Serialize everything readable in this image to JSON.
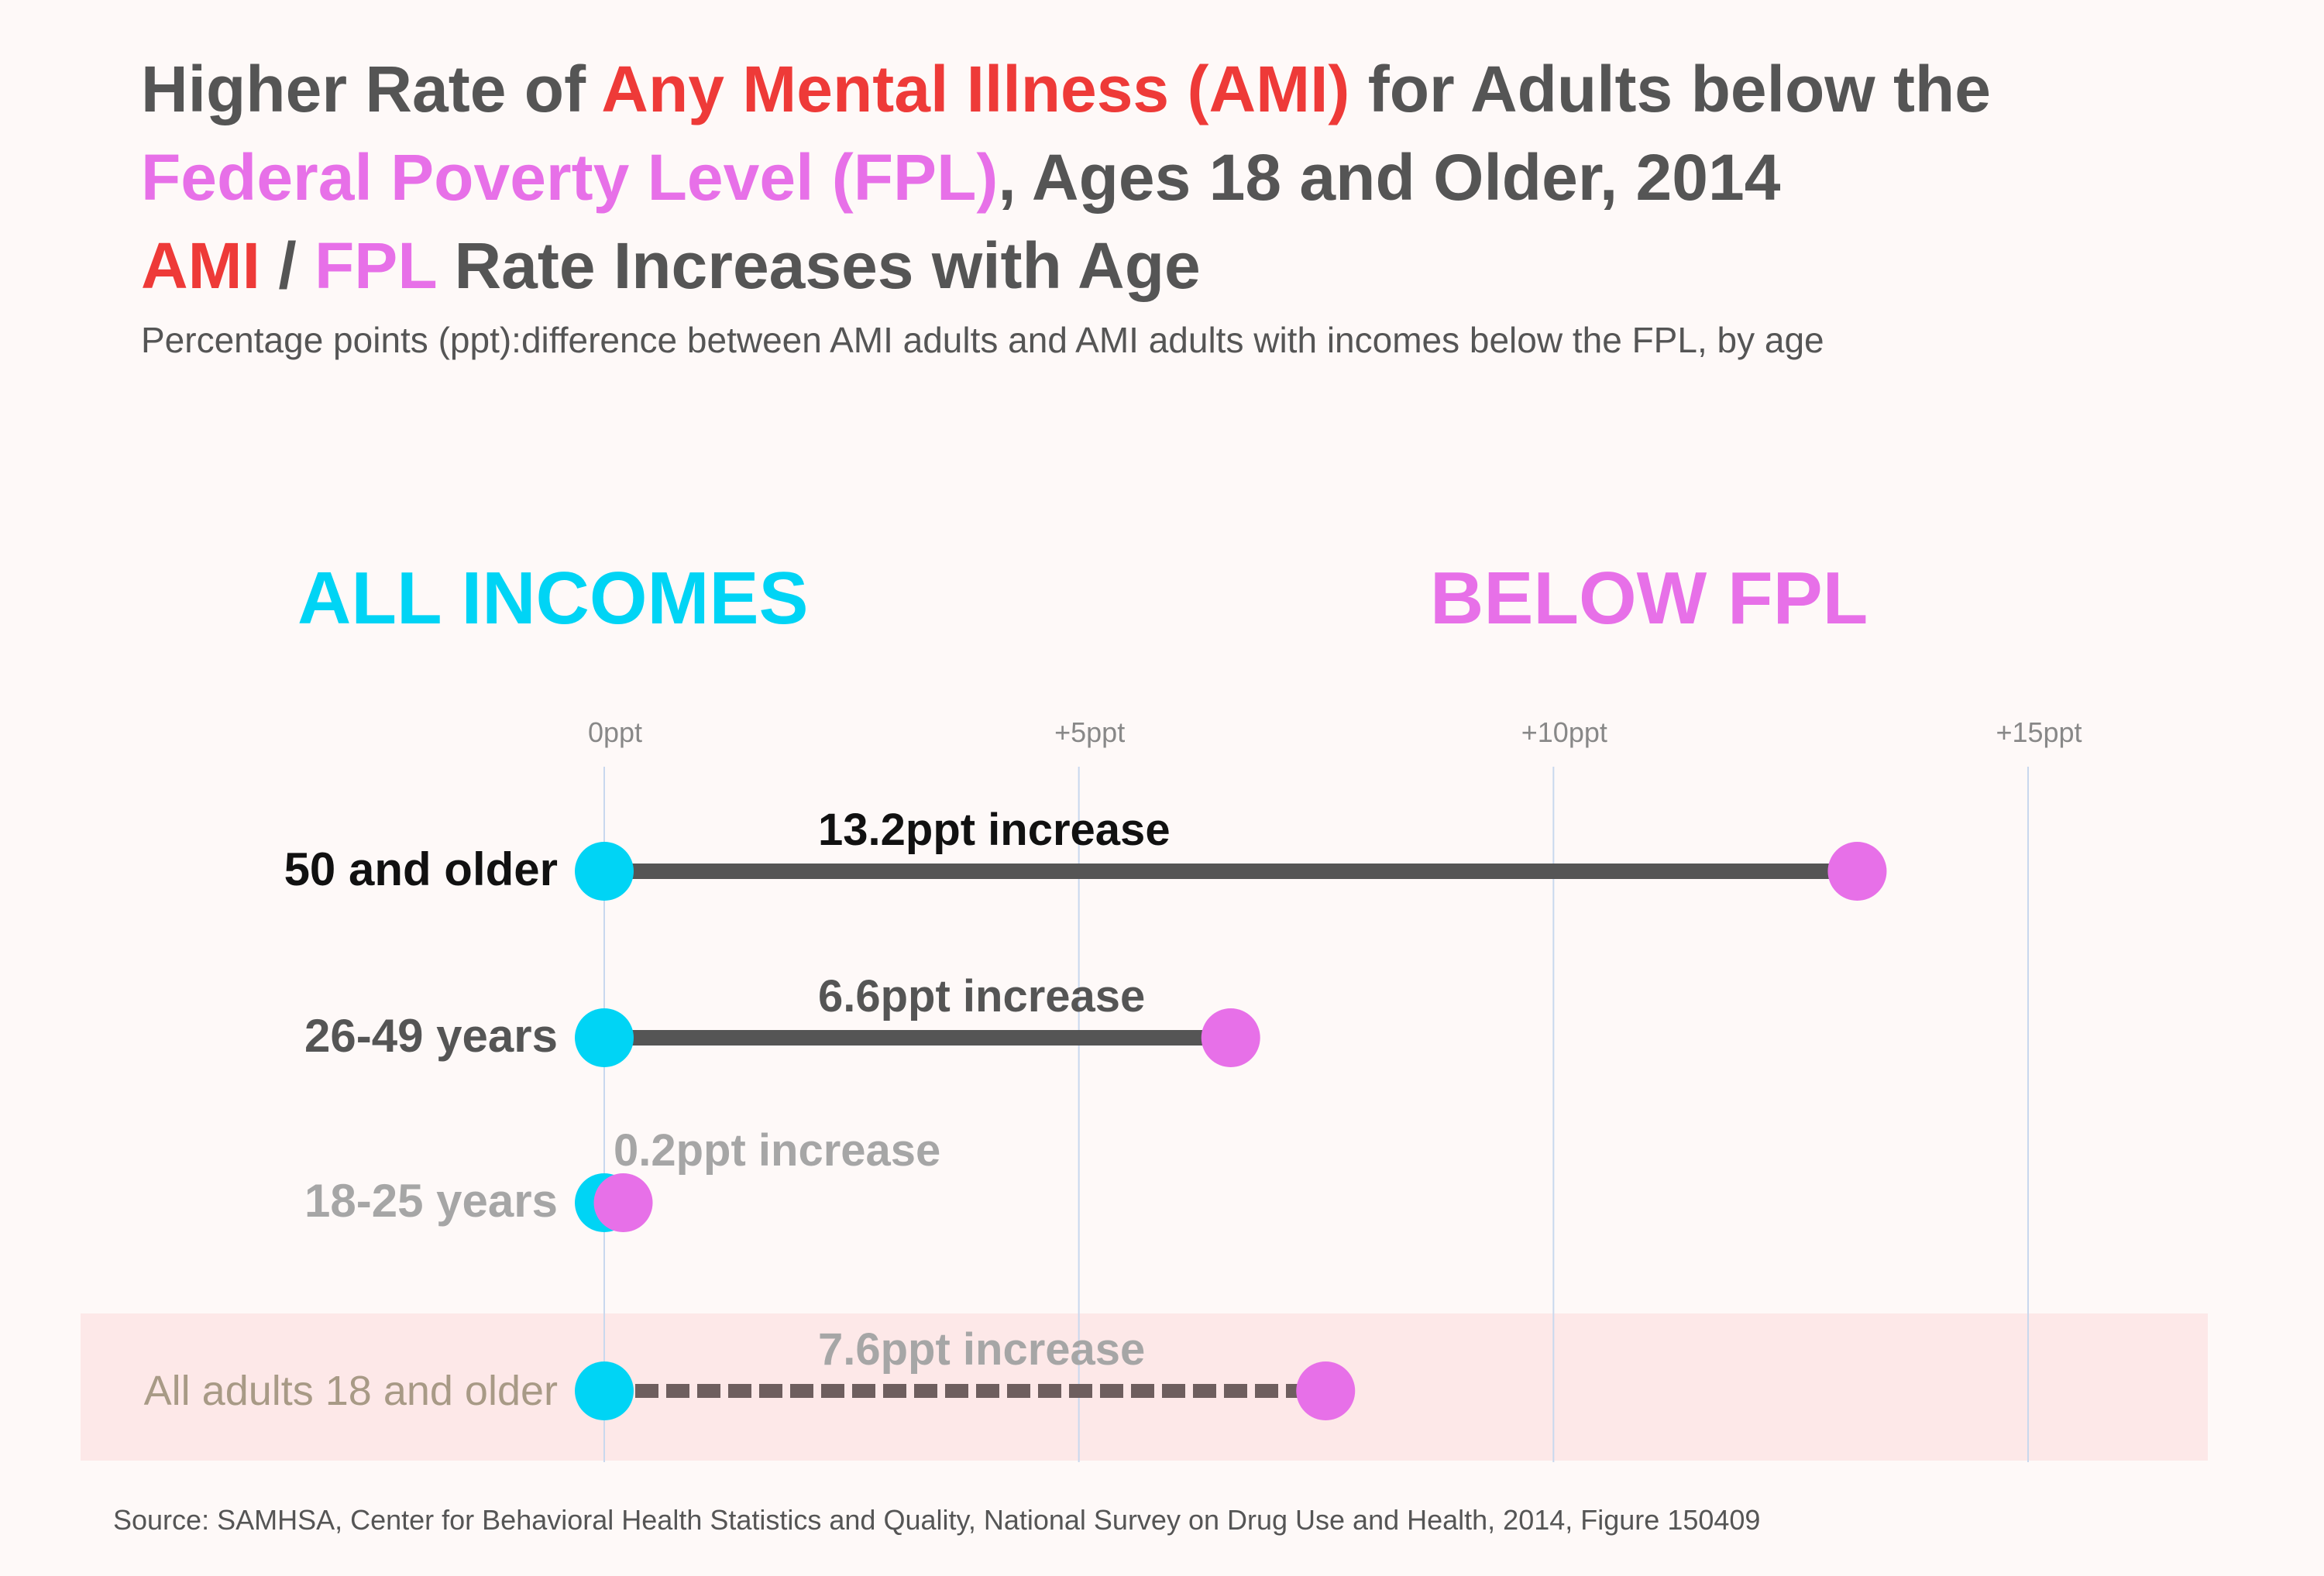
{
  "title": {
    "line1": {
      "pre": "Higher Rate of ",
      "highlight": "Any Mental Illness (AMI)",
      "post": " for Adults below the"
    },
    "line2": {
      "highlight": "Federal Poverty Level (FPL)",
      "post": ", Ages 18 and Older, 2014"
    },
    "line3": {
      "ami": "AMI",
      "slash": " / ",
      "fpl": "FPL",
      "post": " Rate Increases with Age"
    }
  },
  "subtitle": "Percentage points (ppt):difference between AMI adults and AMI adults with incomes below the FPL, by age",
  "group_labels": {
    "all_incomes": "ALL INCOMES",
    "below_fpl": "BELOW FPL"
  },
  "source": "Source: SAMHSA, Center for Behavioral Health Statistics and Quality, National Survey on Drug Use and Health, 2014, Figure 150409",
  "colors": {
    "title_gray": "#555555",
    "ami_red": "#ee3a38",
    "fpl_pink": "#e770e8",
    "all_incomes_cyan": "#00d4f5",
    "below_fpl_pink": "#e770e8",
    "bar_dark": "#555555",
    "bar_total": "#6e5e5e",
    "highlight_band": "#fde8e8",
    "grid": "#c9d8ee",
    "tick_text": "#888888",
    "background": "#fef9f8"
  },
  "chart_data": {
    "type": "dumbbell",
    "unit": "ppt",
    "x_ticks": [
      {
        "value": 0,
        "label": "0ppt"
      },
      {
        "value": 5,
        "label": "+5ppt"
      },
      {
        "value": 10,
        "label": "+10ppt"
      },
      {
        "value": 15,
        "label": "+15ppt"
      }
    ],
    "xlim": [
      0,
      15
    ],
    "grid": "vertical",
    "series_names": {
      "start": "ALL INCOMES",
      "end": "BELOW FPL"
    },
    "rows": [
      {
        "category": "50 and older",
        "start": 0,
        "end": 13.2,
        "label": "13.2ppt increase",
        "label_color": "#111111",
        "category_color": "#111111",
        "line_style": "solid",
        "highlight": false
      },
      {
        "category": "26-49 years",
        "start": 0,
        "end": 6.6,
        "label": "6.6ppt increase",
        "label_color": "#555555",
        "category_color": "#555555",
        "line_style": "solid",
        "highlight": false
      },
      {
        "category": "18-25 years",
        "start": 0,
        "end": 0.2,
        "label": "0.2ppt increase",
        "label_color": "#a6a6a6",
        "category_color": "#a6a6a6",
        "line_style": "solid",
        "highlight": false
      },
      {
        "category": "All adults 18 and older",
        "start": 0,
        "end": 7.6,
        "label": "7.6ppt increase",
        "label_color": "#a6a6a6",
        "category_color": "#a89a86",
        "line_style": "dashed",
        "highlight": true
      }
    ]
  }
}
